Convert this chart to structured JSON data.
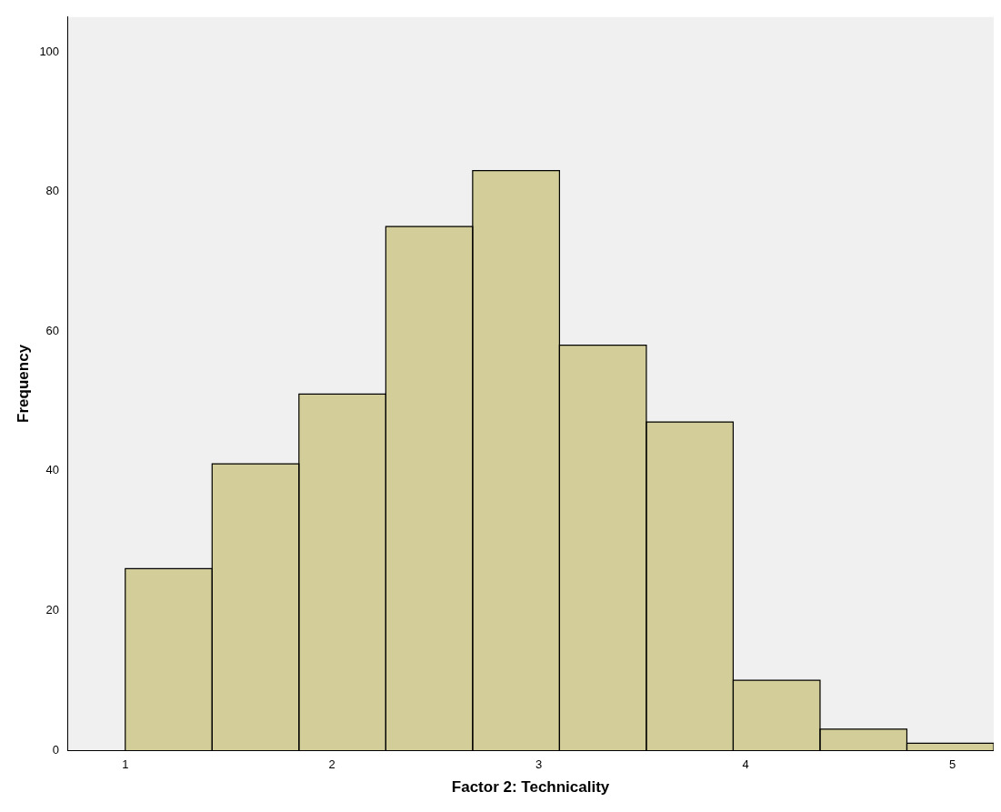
{
  "chart_data": {
    "type": "histogram",
    "xlabel": "Factor 2: Technicality",
    "ylabel": "Frequency",
    "bins": [
      1,
      1.42,
      1.84,
      2.26,
      2.68,
      3.1,
      3.52,
      3.94,
      4.36,
      4.78,
      5.2
    ],
    "values": [
      26,
      41,
      51,
      75,
      83,
      58,
      47,
      10,
      3,
      1
    ],
    "color": "#d3ce99",
    "xlim": [
      0.72,
      5.2
    ],
    "xticks": [
      1,
      2,
      3,
      4,
      5
    ],
    "ylim": [
      0,
      105
    ],
    "yticks": [
      0,
      20,
      40,
      60,
      80,
      100
    ],
    "grid": false,
    "legend": false
  }
}
